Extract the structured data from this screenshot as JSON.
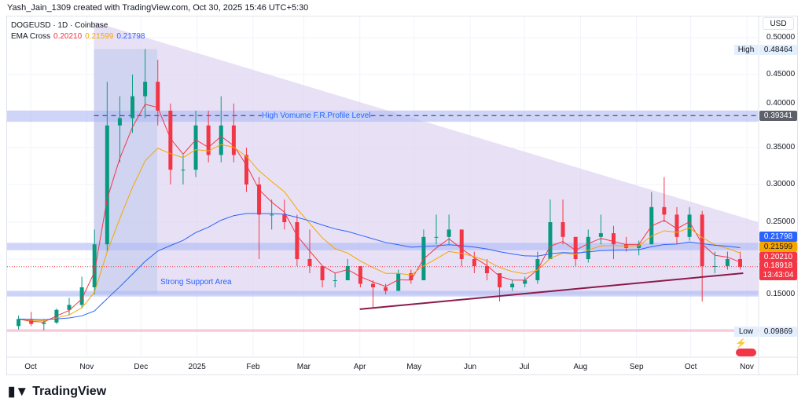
{
  "header": {
    "credit": "Yash_Jain_1309 created with TradingView.com, Oct 30, 2025 15:46 UTC+5:30"
  },
  "legend": {
    "symbol": "DOGEUSD · 1D · Coinbase",
    "indicator": "EMA Cross",
    "ema_fast": "0.20210",
    "ema_mid": "0.21599",
    "ema_slow": "0.21798"
  },
  "axis": {
    "currency": "USD",
    "price_ticks": [
      "0.50000",
      "0.45000",
      "0.40000",
      "0.35000",
      "0.30000",
      "0.25000",
      "0.15000"
    ],
    "date_ticks": [
      "Oct",
      "Nov",
      "Dec",
      "2025",
      "Feb",
      "Mar",
      "Apr",
      "May",
      "Jun",
      "Jul",
      "Aug",
      "Sep",
      "Oct",
      "Nov"
    ]
  },
  "labels": {
    "high_tag": "High",
    "high_value": "0.48464",
    "low_tag": "Low",
    "low_value": "0.09869",
    "level_value": "0.39341",
    "ema_slow_value": "0.21798",
    "ema_mid_value": "0.21599",
    "ema_fast_value": "0.20210",
    "last_price": "0.18918",
    "countdown": "13:43:04"
  },
  "annotations": {
    "hv_level": "High Vomume F.R.Profile Level",
    "support": "Strong Support Area"
  },
  "colors": {
    "up": "#089981",
    "down": "#f23645",
    "ema_fast": "#f23645",
    "ema_mid": "#f7a600",
    "ema_slow": "#2962ff",
    "triangle": "#d9cdf0",
    "band": "#aeb9f5",
    "trendline": "#8b1a4a"
  },
  "footer": {
    "brand": "TradingView"
  },
  "chart_data": {
    "type": "candlestick",
    "symbol": "DOGEUSD",
    "interval_shown": "1D (approximated weekly)",
    "scale": "log",
    "yrange": [
      0.0987,
      0.5
    ],
    "candles": [
      [
        "2024-09-23",
        0.105,
        0.12,
        0.1,
        0.115
      ],
      [
        "2024-09-30",
        0.115,
        0.125,
        0.105,
        0.108
      ],
      [
        "2024-10-07",
        0.108,
        0.115,
        0.099,
        0.11
      ],
      [
        "2024-10-14",
        0.11,
        0.13,
        0.108,
        0.128
      ],
      [
        "2024-10-21",
        0.128,
        0.145,
        0.12,
        0.135
      ],
      [
        "2024-10-28",
        0.135,
        0.175,
        0.13,
        0.16
      ],
      [
        "2024-11-04",
        0.16,
        0.24,
        0.15,
        0.22
      ],
      [
        "2024-11-11",
        0.22,
        0.44,
        0.21,
        0.38
      ],
      [
        "2024-11-18",
        0.38,
        0.42,
        0.33,
        0.39
      ],
      [
        "2024-11-25",
        0.39,
        0.45,
        0.37,
        0.42
      ],
      [
        "2024-12-02",
        0.42,
        0.4846,
        0.39,
        0.44
      ],
      [
        "2024-12-09",
        0.44,
        0.47,
        0.38,
        0.4
      ],
      [
        "2024-12-16",
        0.4,
        0.41,
        0.3,
        0.32
      ],
      [
        "2024-12-23",
        0.32,
        0.34,
        0.3,
        0.32
      ],
      [
        "2024-12-30",
        0.32,
        0.4,
        0.31,
        0.38
      ],
      [
        "2025-01-06",
        0.38,
        0.4,
        0.33,
        0.34
      ],
      [
        "2025-01-13",
        0.34,
        0.42,
        0.33,
        0.38
      ],
      [
        "2025-01-20",
        0.38,
        0.41,
        0.33,
        0.34
      ],
      [
        "2025-01-27",
        0.34,
        0.35,
        0.29,
        0.3
      ],
      [
        "2025-02-03",
        0.3,
        0.31,
        0.2,
        0.26
      ],
      [
        "2025-02-10",
        0.26,
        0.28,
        0.24,
        0.26
      ],
      [
        "2025-02-17",
        0.26,
        0.28,
        0.24,
        0.25
      ],
      [
        "2025-02-24",
        0.25,
        0.26,
        0.19,
        0.2
      ],
      [
        "2025-03-03",
        0.2,
        0.24,
        0.18,
        0.19
      ],
      [
        "2025-03-10",
        0.19,
        0.19,
        0.16,
        0.17
      ],
      [
        "2025-03-17",
        0.17,
        0.18,
        0.16,
        0.17
      ],
      [
        "2025-03-24",
        0.17,
        0.2,
        0.17,
        0.19
      ],
      [
        "2025-03-31",
        0.19,
        0.19,
        0.16,
        0.165
      ],
      [
        "2025-04-07",
        0.165,
        0.17,
        0.13,
        0.16
      ],
      [
        "2025-04-14",
        0.16,
        0.165,
        0.15,
        0.155
      ],
      [
        "2025-04-21",
        0.155,
        0.185,
        0.155,
        0.18
      ],
      [
        "2025-04-28",
        0.18,
        0.185,
        0.165,
        0.17
      ],
      [
        "2025-05-05",
        0.17,
        0.24,
        0.17,
        0.23
      ],
      [
        "2025-05-12",
        0.23,
        0.26,
        0.22,
        0.23
      ],
      [
        "2025-05-19",
        0.23,
        0.26,
        0.22,
        0.24
      ],
      [
        "2025-05-26",
        0.24,
        0.24,
        0.19,
        0.2
      ],
      [
        "2025-06-02",
        0.2,
        0.21,
        0.18,
        0.19
      ],
      [
        "2025-06-09",
        0.19,
        0.2,
        0.17,
        0.18
      ],
      [
        "2025-06-16",
        0.18,
        0.18,
        0.14,
        0.16
      ],
      [
        "2025-06-23",
        0.16,
        0.17,
        0.155,
        0.165
      ],
      [
        "2025-06-30",
        0.165,
        0.175,
        0.16,
        0.17
      ],
      [
        "2025-07-07",
        0.17,
        0.21,
        0.165,
        0.2
      ],
      [
        "2025-07-14",
        0.2,
        0.28,
        0.2,
        0.25
      ],
      [
        "2025-07-21",
        0.25,
        0.28,
        0.22,
        0.23
      ],
      [
        "2025-07-28",
        0.23,
        0.23,
        0.19,
        0.2
      ],
      [
        "2025-08-04",
        0.2,
        0.24,
        0.195,
        0.23
      ],
      [
        "2025-08-11",
        0.23,
        0.26,
        0.22,
        0.235
      ],
      [
        "2025-08-18",
        0.235,
        0.245,
        0.2,
        0.22
      ],
      [
        "2025-08-25",
        0.22,
        0.23,
        0.21,
        0.215
      ],
      [
        "2025-09-01",
        0.215,
        0.225,
        0.205,
        0.22
      ],
      [
        "2025-09-08",
        0.22,
        0.29,
        0.22,
        0.27
      ],
      [
        "2025-09-15",
        0.27,
        0.31,
        0.25,
        0.26
      ],
      [
        "2025-09-22",
        0.26,
        0.27,
        0.22,
        0.23
      ],
      [
        "2025-09-29",
        0.23,
        0.27,
        0.225,
        0.26
      ],
      [
        "2025-10-06",
        0.26,
        0.265,
        0.14,
        0.19
      ],
      [
        "2025-10-13",
        0.19,
        0.21,
        0.18,
        0.19
      ],
      [
        "2025-10-20",
        0.19,
        0.21,
        0.185,
        0.2
      ],
      [
        "2025-10-27",
        0.2,
        0.21,
        0.185,
        0.189
      ]
    ],
    "drawings": {
      "triangle": {
        "top_start": [
          "2024-11-05",
          0.52
        ],
        "top_end": [
          "2025-11-01",
          0.25
        ],
        "bottom": 0.15
      },
      "hv_box": {
        "from": "2024-11-05",
        "to": "2024-12-10",
        "low": 0.15,
        "high": 0.4846
      },
      "hv_band": [
        0.385,
        0.4
      ],
      "hv_line": 0.39341,
      "resistance_band": [
        0.212,
        0.222
      ],
      "support_band": [
        0.147,
        0.155
      ],
      "low_band": [
        0.097,
        0.1005
      ],
      "trendline": {
        "start": [
          "2025-04-01",
          0.129
        ],
        "end": [
          "2025-10-30",
          0.18
        ]
      }
    }
  }
}
